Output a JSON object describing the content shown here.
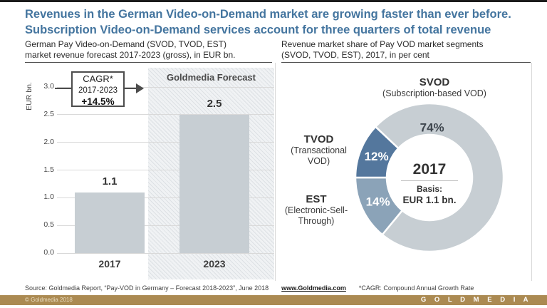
{
  "slide": {
    "title_line1": "Revenues in the German Video-on-Demand market are growing faster than ever before.",
    "title_line2": "Subscription Video-on-Demand services account for three quarters of total revenue",
    "title_color": "#44759f",
    "accent_gold": "#ab8a52"
  },
  "left_panel": {
    "subtitle_line1": "German Pay Video-on-Demand (SVOD, TVOD, EST)",
    "subtitle_line2": "market revenue forecast 2017-2023 (gross), in EUR bn.",
    "y_axis_label": "EUR bn.",
    "forecast_label": "Goldmedia Forecast",
    "cagr_box": {
      "line1": "CAGR*",
      "line2": "2017-2023",
      "line3": "+14.5%"
    }
  },
  "right_panel": {
    "subtitle_line1": "Revenue market share of Pay VOD market segments",
    "subtitle_line2": "(SVOD, TVOD, EST), 2017, in per cent"
  },
  "chart_data": [
    {
      "type": "bar",
      "title": "German Pay Video-on-Demand (SVOD, TVOD, EST) market revenue forecast 2017-2023 (gross), in EUR bn.",
      "categories": [
        "2017",
        "2023"
      ],
      "values": [
        1.1,
        2.5
      ],
      "xlabel": "",
      "ylabel": "EUR bn.",
      "ylim": [
        0,
        3.0
      ],
      "ytick_step": 0.5,
      "grid": true,
      "bar_color": "#c7ced3",
      "annotations": [
        "CAGR* 2017-2023 +14.5%",
        "Goldmedia Forecast applies to 2023"
      ]
    },
    {
      "type": "pie",
      "title": "Revenue market share of Pay VOD market segments (SVOD, TVOD, EST), 2017, in per cent",
      "segments": [
        {
          "label": "SVOD",
          "sublabel": "(Subscription-based VOD)",
          "value": 74,
          "display": "74%",
          "color": "#c7ced3",
          "pct_color": "#3e464e"
        },
        {
          "label": "TVOD",
          "sublabel": "(Transactional VOD)",
          "value": 12,
          "display": "12%",
          "color": "#54779d",
          "pct_color": "#ffffff"
        },
        {
          "label": "EST",
          "sublabel": "(Electronic-Sell-Through)",
          "value": 14,
          "display": "14%",
          "color": "#8ba3b8",
          "pct_color": "#ffffff"
        }
      ],
      "center": {
        "year": "2017",
        "basis_label": "Basis:",
        "basis_value": "EUR 1.1 bn."
      },
      "legend_position": "outside-labels",
      "donut": true
    }
  ],
  "footer": {
    "source": "Source: Goldmedia Report, “Pay-VOD in Germany – Forecast 2018-2023”, June 2018",
    "link": "www.Goldmedia.com",
    "cagr_note": "*CAGR: Compound Annual Growth Rate",
    "copyright": "© Goldmedia 2018",
    "brand": "G O L D M E D I A"
  }
}
